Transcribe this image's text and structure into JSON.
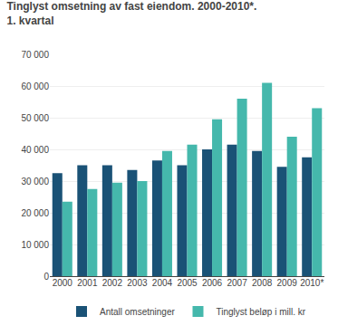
{
  "chart_data": {
    "type": "bar",
    "title": "Tinglyst omsetning av fast eiendom. 2000-2010*.",
    "subtitle": "1. kvartal",
    "categories": [
      "2000",
      "2001",
      "2002",
      "2003",
      "2004",
      "2005",
      "2006",
      "2007",
      "2008",
      "2009",
      "2010*"
    ],
    "series": [
      {
        "name": "Antall omsetninger",
        "color": "#1a5276",
        "values": [
          32500,
          35000,
          35000,
          33500,
          36500,
          35000,
          40000,
          41500,
          39500,
          34500,
          37500
        ]
      },
      {
        "name": "Tinglyst beløp i mill. kr",
        "color": "#45b8ac",
        "values": [
          23500,
          27500,
          29500,
          30000,
          39500,
          41500,
          49500,
          56000,
          61000,
          44000,
          53000
        ]
      }
    ],
    "ylim": [
      0,
      70000
    ],
    "yticks": [
      0,
      {
        "value": 10000,
        "label": "10 000"
      },
      {
        "value": 20000,
        "label": "20 000"
      },
      {
        "value": 30000,
        "label": "30 000"
      },
      {
        "value": 40000,
        "label": "40 000"
      },
      {
        "value": 50000,
        "label": "50 000"
      },
      {
        "value": 60000,
        "label": "60 000"
      },
      {
        "value": 70000,
        "label": "70 000"
      }
    ],
    "grid": true,
    "legend": "bottom"
  }
}
